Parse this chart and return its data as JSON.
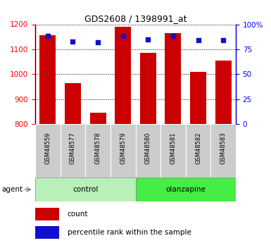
{
  "title": "GDS2608 / 1398991_at",
  "samples": [
    "GSM48559",
    "GSM48577",
    "GSM48578",
    "GSM48579",
    "GSM48580",
    "GSM48581",
    "GSM48582",
    "GSM48583"
  ],
  "counts": [
    1155,
    965,
    845,
    1190,
    1085,
    1165,
    1010,
    1055
  ],
  "percentiles": [
    88,
    83,
    82,
    88,
    85,
    88,
    84,
    84
  ],
  "ylim_left": [
    800,
    1200
  ],
  "ylim_right": [
    0,
    100
  ],
  "yticks_left": [
    800,
    900,
    1000,
    1100,
    1200
  ],
  "yticks_right": [
    0,
    25,
    50,
    75,
    100
  ],
  "bar_color": "#cc0000",
  "dot_color": "#1010cc",
  "control_bg": "#b8f0b8",
  "olanzapine_bg": "#44ee44",
  "xticklabel_bg": "#cccccc",
  "title_fontsize": 9,
  "legend_count_label": "count",
  "legend_pct_label": "percentile rank within the sample",
  "n_control": 4,
  "n_olanzapine": 4
}
